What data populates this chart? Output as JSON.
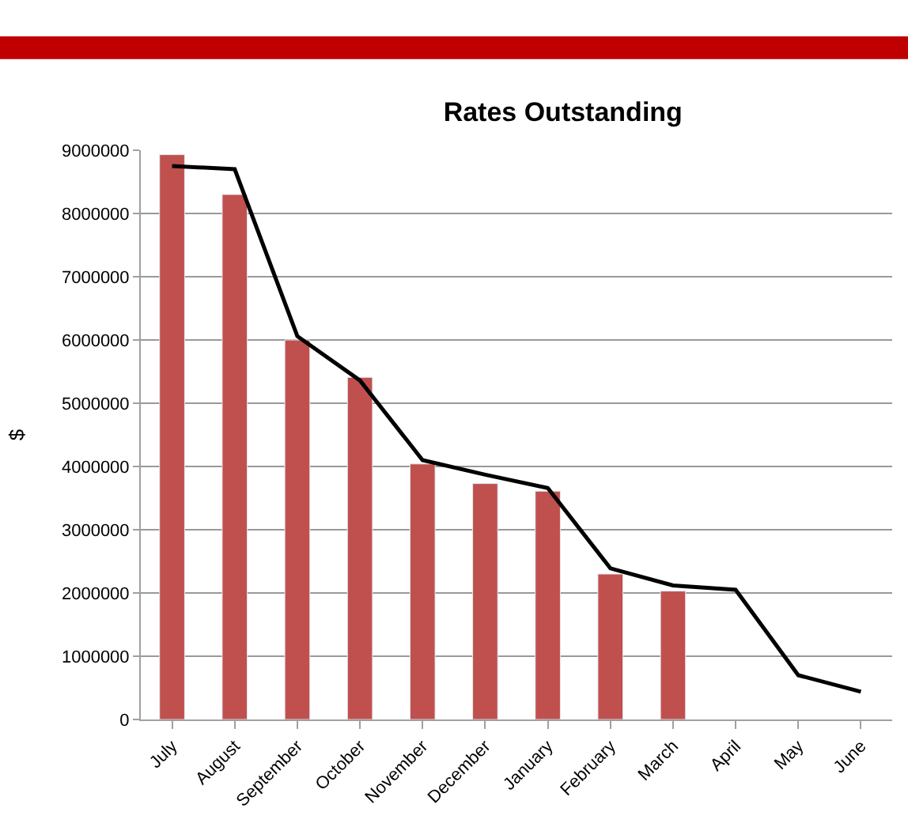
{
  "chart_data": {
    "type": "bar",
    "title": "Rates Outstanding",
    "ylabel": "$",
    "categories": [
      "July",
      "August",
      "September",
      "October",
      "November",
      "December",
      "January",
      "February",
      "March",
      "April",
      "May",
      "June"
    ],
    "series": [
      {
        "color": "#c0504d",
        "values": [
          8930000,
          8300000,
          6000000,
          5410000,
          4040000,
          3730000,
          3610000,
          2300000,
          2030000,
          null,
          null,
          null
        ]
      },
      {
        "type": "line",
        "color": "#000000",
        "values": [
          8750000,
          8700000,
          6060000,
          5360000,
          4100000,
          3870000,
          3660000,
          2390000,
          2120000,
          2050000,
          700000,
          440000
        ]
      }
    ],
    "ylim": [
      0,
      9000000
    ],
    "yticks": [
      0,
      1000000,
      2000000,
      3000000,
      4000000,
      5000000,
      6000000,
      7000000,
      8000000,
      9000000
    ],
    "grid": "y",
    "marker": "none"
  }
}
